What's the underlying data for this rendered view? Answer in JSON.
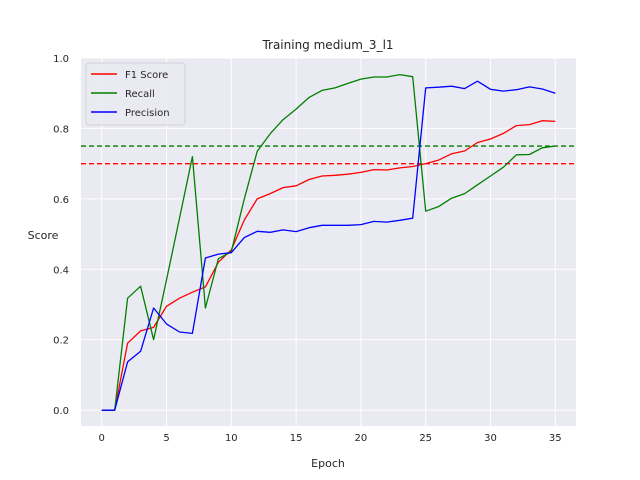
{
  "chart_data": {
    "type": "line",
    "title": "Training medium_3_l1",
    "xlabel": "Epoch",
    "ylabel": "Score",
    "xlim": [
      -1.6,
      36.6
    ],
    "ylim": [
      -0.045,
      1.0
    ],
    "xticks": [
      0,
      5,
      10,
      15,
      20,
      25,
      30,
      35
    ],
    "yticks": [
      0.0,
      0.2,
      0.4,
      0.6,
      0.8,
      1.0
    ],
    "xtick_labels": [
      "0",
      "5",
      "10",
      "15",
      "20",
      "25",
      "30",
      "35"
    ],
    "ytick_labels": [
      "0.0",
      "0.2",
      "0.4",
      "0.6",
      "0.8",
      "1.0"
    ],
    "grid": true,
    "legend_position": "top-left",
    "x": [
      0,
      1,
      2,
      3,
      4,
      5,
      6,
      7,
      8,
      9,
      10,
      11,
      12,
      13,
      14,
      15,
      16,
      17,
      18,
      19,
      20,
      21,
      22,
      23,
      24,
      25,
      26,
      27,
      28,
      29,
      30,
      31,
      32,
      33,
      34,
      35
    ],
    "series": [
      {
        "name": "F1 Score",
        "color": "#ff0000",
        "values": [
          0.0,
          0.0,
          0.19,
          0.225,
          0.235,
          0.295,
          0.318,
          0.335,
          0.35,
          0.42,
          0.455,
          0.54,
          0.6,
          0.615,
          0.632,
          0.637,
          0.655,
          0.665,
          0.667,
          0.67,
          0.675,
          0.683,
          0.682,
          0.688,
          0.692,
          0.7,
          0.71,
          0.728,
          0.736,
          0.76,
          0.77,
          0.786,
          0.808,
          0.811,
          0.822,
          0.82
        ]
      },
      {
        "name": "Recall",
        "color": "#008000",
        "values": [
          0.0,
          0.0,
          0.318,
          0.352,
          0.2,
          0.37,
          0.545,
          0.72,
          0.29,
          0.43,
          0.45,
          0.6,
          0.735,
          0.785,
          0.825,
          0.855,
          0.888,
          0.908,
          0.915,
          0.928,
          0.94,
          0.946,
          0.946,
          0.953,
          0.947,
          0.565,
          0.578,
          0.602,
          0.615,
          0.64,
          0.665,
          0.69,
          0.725,
          0.726,
          0.745,
          0.75
        ]
      },
      {
        "name": "Precision",
        "color": "#0000ff",
        "values": [
          0.0,
          0.0,
          0.137,
          0.167,
          0.29,
          0.245,
          0.222,
          0.218,
          0.432,
          0.443,
          0.447,
          0.49,
          0.508,
          0.505,
          0.512,
          0.507,
          0.518,
          0.525,
          0.525,
          0.525,
          0.527,
          0.536,
          0.534,
          0.539,
          0.545,
          0.915,
          0.917,
          0.92,
          0.913,
          0.934,
          0.911,
          0.906,
          0.91,
          0.918,
          0.912,
          0.9
        ]
      }
    ],
    "reference_lines": [
      {
        "y": 0.75,
        "color": "#008000",
        "style": "dashed"
      },
      {
        "y": 0.7,
        "color": "#ff0000",
        "style": "dashed"
      }
    ],
    "plot_background": "#eaeaf2",
    "grid_color": "#ffffff"
  }
}
